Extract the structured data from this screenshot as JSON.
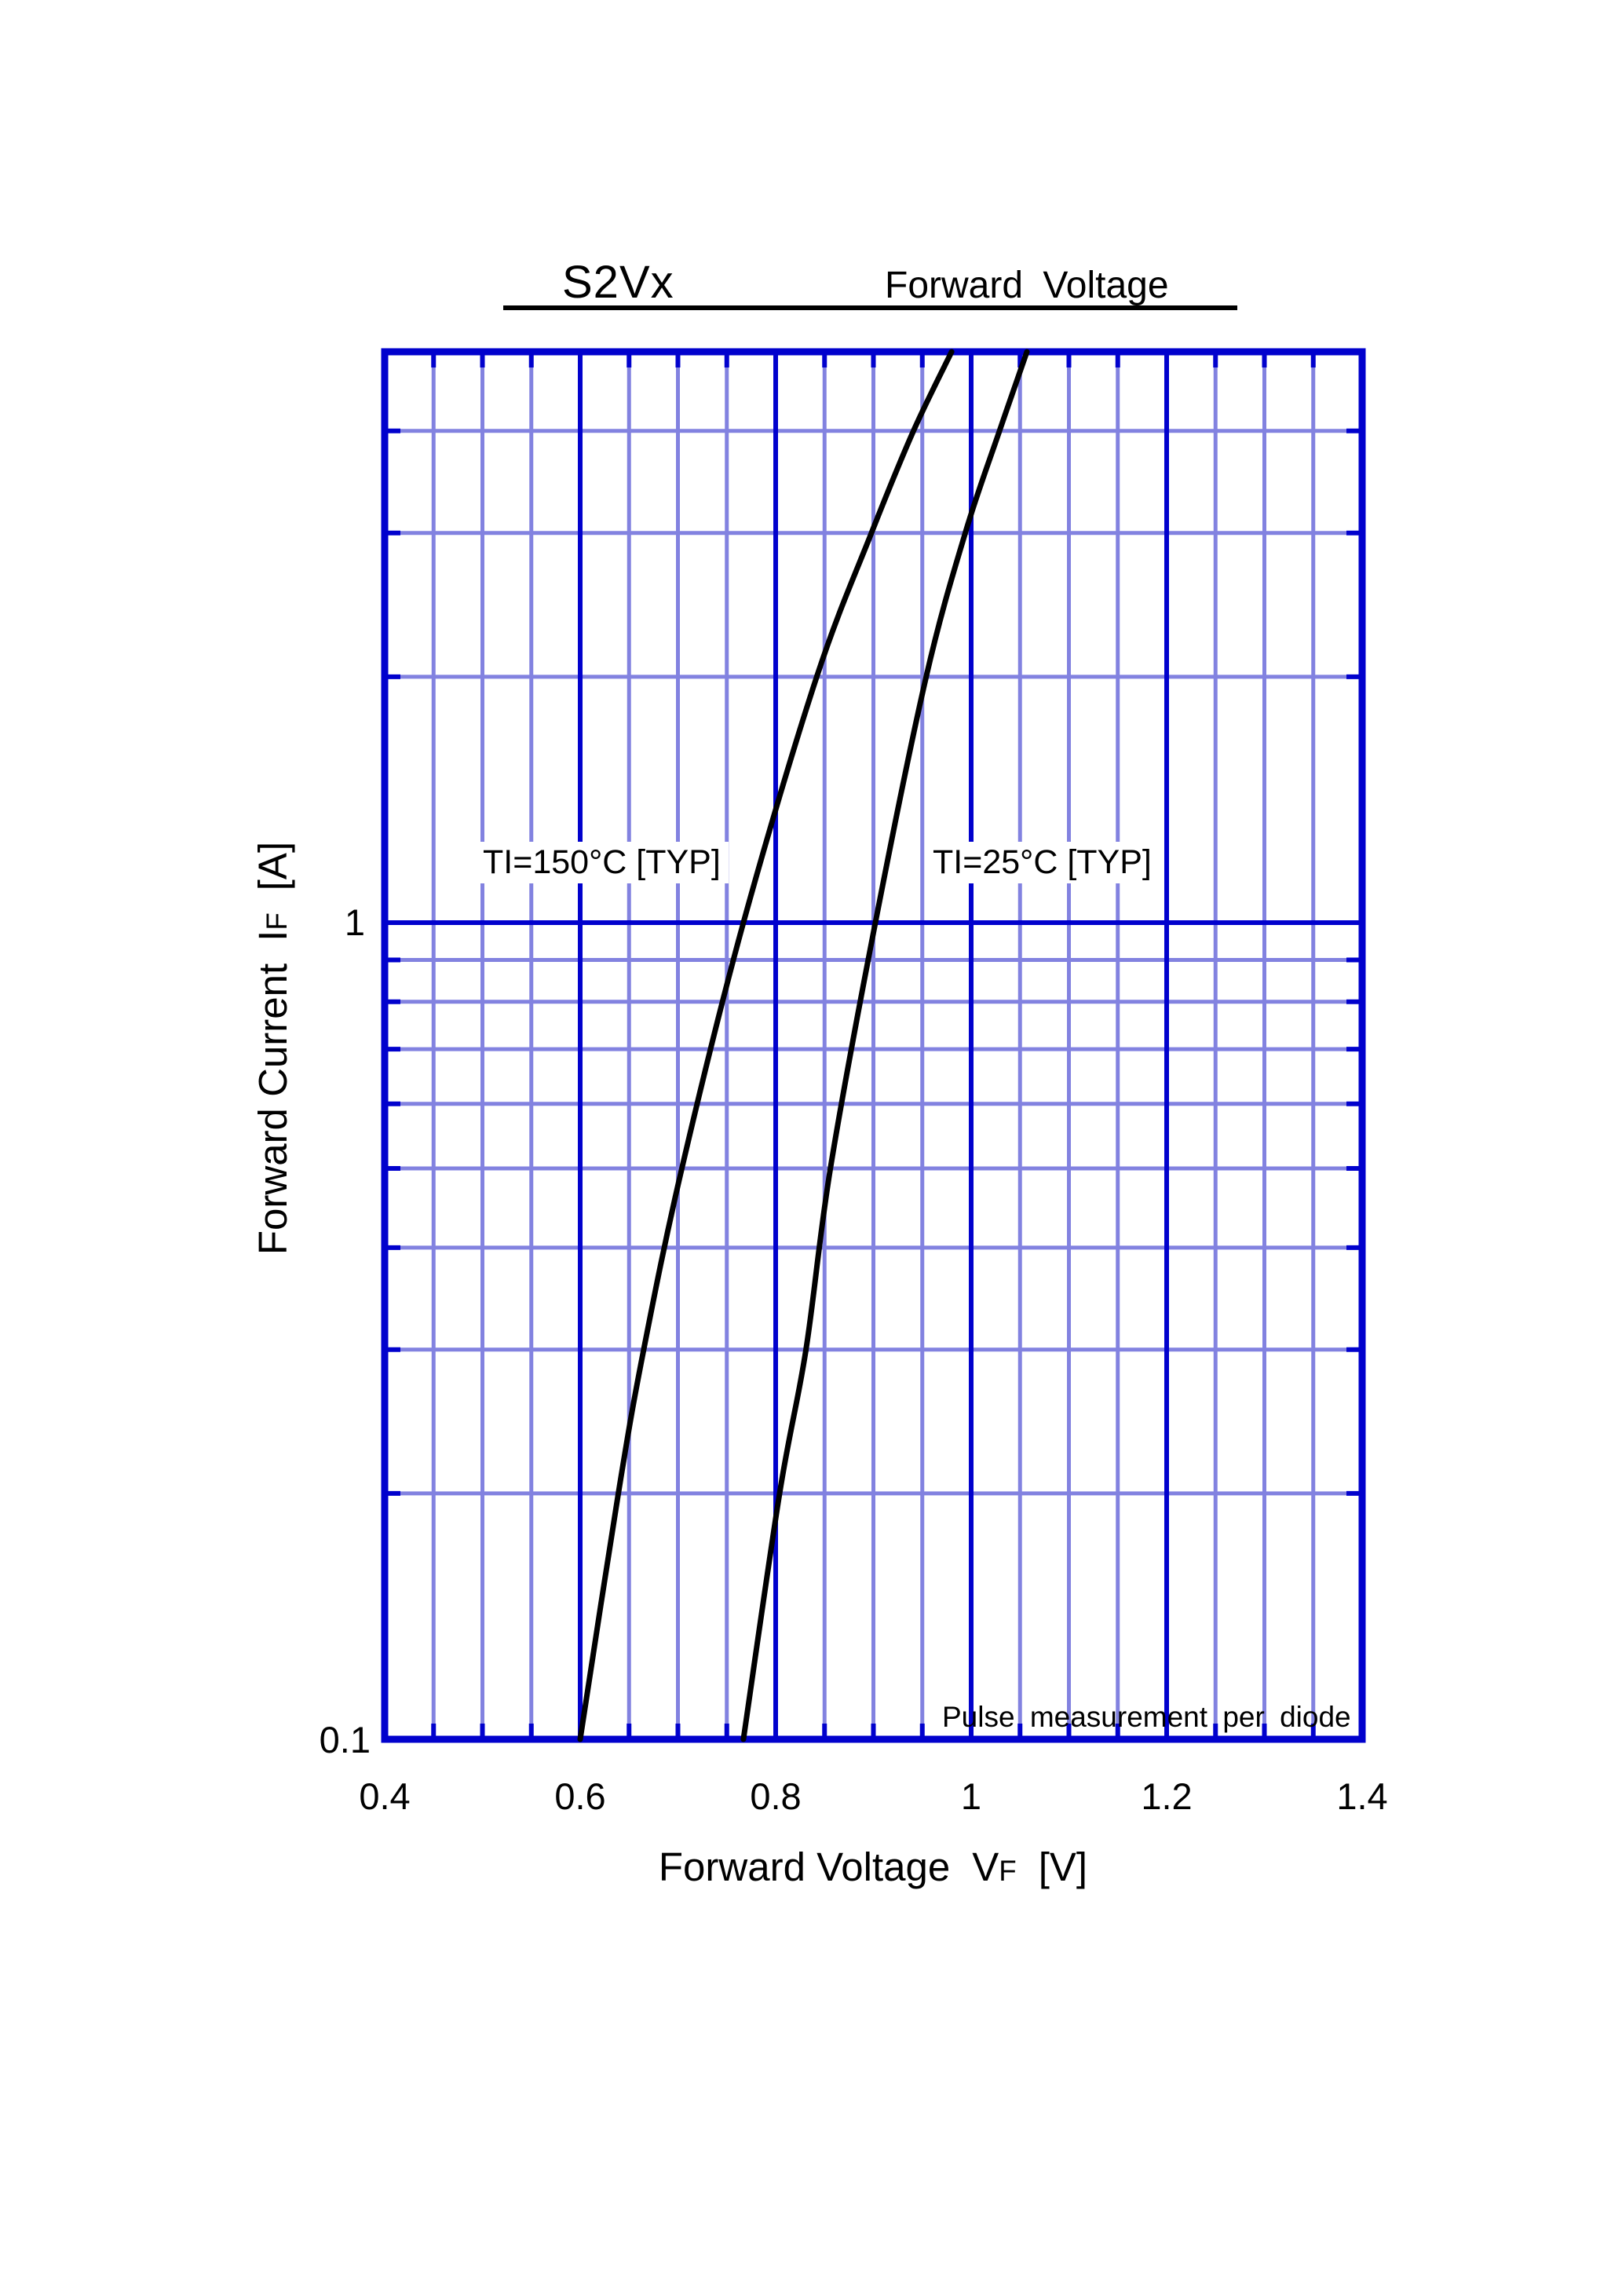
{
  "header": {
    "part_number": "S2Vx",
    "chart_title": "Forward Voltage"
  },
  "axes": {
    "x": {
      "title_text": "Forward Voltage",
      "symbol": "V",
      "symbol_sub": "F",
      "unit": "[V]"
    },
    "y": {
      "title_text": "Forward Current",
      "symbol": "I",
      "symbol_sub": "F",
      "unit": "[A]"
    }
  },
  "annotations": {
    "pulse_note": "Pulse measurement per diode"
  },
  "colors": {
    "grid_major": "#0101CD",
    "grid_minor": "#8282E0",
    "border": "#0101CD",
    "curve": "#000000",
    "text": "#000000",
    "background": "#FFFFFF"
  },
  "chart_data": {
    "type": "line",
    "title": "S2Vx  Forward Voltage",
    "xlabel": "Forward Voltage VF [V]",
    "ylabel": "Forward Current IF [A]",
    "xlim": [
      0.4,
      1.4
    ],
    "ylim": [
      0.1,
      5
    ],
    "xscale": "linear",
    "yscale": "log",
    "grid": true,
    "x_major_gridlines": [
      0.6,
      0.8,
      1.0,
      1.2
    ],
    "x_minor_step": 0.05,
    "y_major_gridlines": [
      1
    ],
    "y_minor_gridlines": [
      0.2,
      0.3,
      0.4,
      0.5,
      0.6,
      0.7,
      0.8,
      0.9,
      2,
      3,
      4
    ],
    "x_tick_labels": [
      "0.4",
      "0.6",
      "0.8",
      "1",
      "1.2",
      "1.4"
    ],
    "y_tick_labels": [
      "1",
      "0.1"
    ],
    "series": [
      {
        "name": "TI=150°C [TYP]",
        "points": [
          [
            0.6,
            0.1
          ],
          [
            0.639,
            0.2
          ],
          [
            0.665,
            0.3
          ],
          [
            0.704,
            0.5
          ],
          [
            0.767,
            1
          ],
          [
            0.842,
            2
          ],
          [
            0.898,
            3
          ],
          [
            0.941,
            4
          ],
          [
            0.98,
            5
          ]
        ]
      },
      {
        "name": "TI=25°C [TYP]",
        "points": [
          [
            0.767,
            0.1
          ],
          [
            0.804,
            0.2
          ],
          [
            0.831,
            0.3
          ],
          [
            0.856,
            0.5
          ],
          [
            0.902,
            1
          ],
          [
            0.954,
            2
          ],
          [
            0.994,
            3
          ],
          [
            1.029,
            4
          ],
          [
            1.057,
            5
          ]
        ]
      }
    ]
  }
}
